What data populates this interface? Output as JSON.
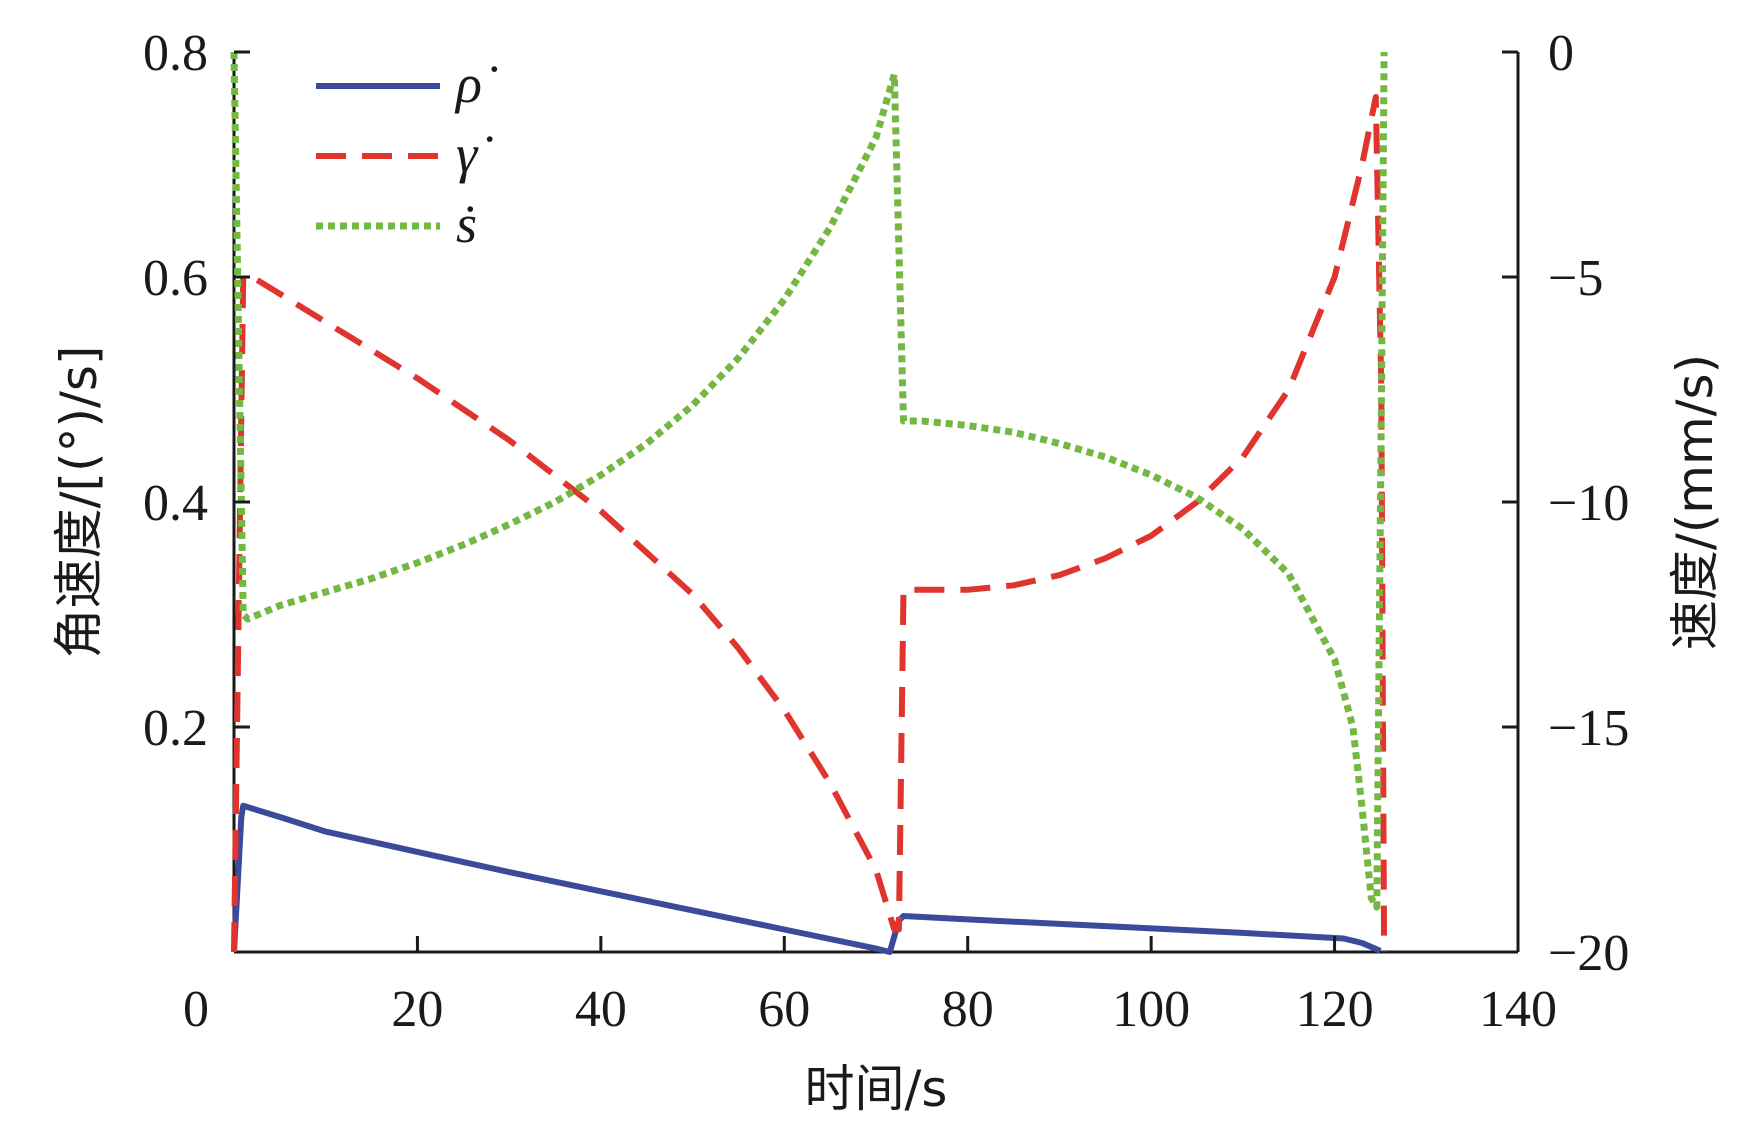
{
  "chart_data": {
    "type": "line",
    "title": "",
    "xlabel": "时间/s",
    "ylabel_left": "角速度/[(°)/s]",
    "ylabel_right": "速度/(mm/s)",
    "xlim": [
      0,
      140
    ],
    "ylim_left": [
      0,
      0.8
    ],
    "ylim_right": [
      -20,
      0
    ],
    "xticks": [
      0,
      20,
      40,
      60,
      80,
      100,
      120,
      140
    ],
    "xtick_labels": [
      "0",
      "20",
      "40",
      "60",
      "80",
      "100",
      "120",
      "140"
    ],
    "yticks_left": [
      0.2,
      0.4,
      0.6,
      0.8
    ],
    "ytick_labels_left": [
      "0.2",
      "0.4",
      "0.6",
      "0.8"
    ],
    "yticks_right": [
      0,
      -5,
      -10,
      -15,
      -20
    ],
    "ytick_labels_right": [
      "0",
      "−5",
      "−10",
      "−15",
      "−20"
    ],
    "x_zero_label": "0",
    "grid": false,
    "legend_position": "top-left",
    "series": [
      {
        "name": "ρ̇",
        "axis": "left",
        "color": "#3b4a9a",
        "style": "solid",
        "x": [
          0,
          0.8,
          1.0,
          5,
          10,
          20,
          30,
          40,
          50,
          60,
          70,
          71.5,
          72.5,
          73,
          80,
          90,
          100,
          110,
          121,
          123,
          125
        ],
        "y": [
          0.0,
          0.12,
          0.13,
          0.12,
          0.107,
          0.089,
          0.071,
          0.054,
          0.037,
          0.02,
          0.003,
          0.0,
          0.028,
          0.032,
          0.029,
          0.025,
          0.021,
          0.017,
          0.012,
          0.008,
          0.001
        ]
      },
      {
        "name": "γ̇",
        "axis": "left",
        "color": "#e0342f",
        "style": "dashed",
        "x": [
          0,
          1.0,
          2,
          10,
          20,
          30,
          40,
          50,
          55,
          60,
          65,
          70,
          72,
          72.5,
          73,
          80,
          85,
          90,
          95,
          100,
          105,
          110,
          115,
          120,
          123,
          124.5,
          125.1,
          125.4
        ],
        "y": [
          0.0,
          0.6,
          0.6,
          0.56,
          0.51,
          0.455,
          0.392,
          0.318,
          0.27,
          0.215,
          0.15,
          0.073,
          0.02,
          0.02,
          0.322,
          0.322,
          0.326,
          0.335,
          0.35,
          0.37,
          0.4,
          0.44,
          0.5,
          0.6,
          0.7,
          0.76,
          0.5,
          0.0
        ]
      },
      {
        "name": "ṡ",
        "axis": "right",
        "color": "#74b843",
        "style": "dotted",
        "x": [
          0,
          1.0,
          1.5,
          5,
          10,
          15,
          20,
          25,
          30,
          35,
          40,
          45,
          50,
          55,
          60,
          65,
          70,
          72,
          73,
          75,
          80,
          85,
          90,
          95,
          100,
          105,
          110,
          115,
          120,
          122,
          123,
          124,
          124.6,
          125.1,
          125.4
        ],
        "y": [
          0,
          -12.5,
          -12.6,
          -12.3,
          -12.0,
          -11.7,
          -11.35,
          -10.95,
          -10.5,
          -10.0,
          -9.4,
          -8.7,
          -7.85,
          -6.8,
          -5.5,
          -3.9,
          -1.9,
          -0.5,
          -8.2,
          -8.2,
          -8.3,
          -8.45,
          -8.7,
          -9.0,
          -9.4,
          -9.9,
          -10.6,
          -11.6,
          -13.5,
          -15.0,
          -16.8,
          -18.8,
          -19.0,
          -8.0,
          0
        ]
      }
    ]
  }
}
